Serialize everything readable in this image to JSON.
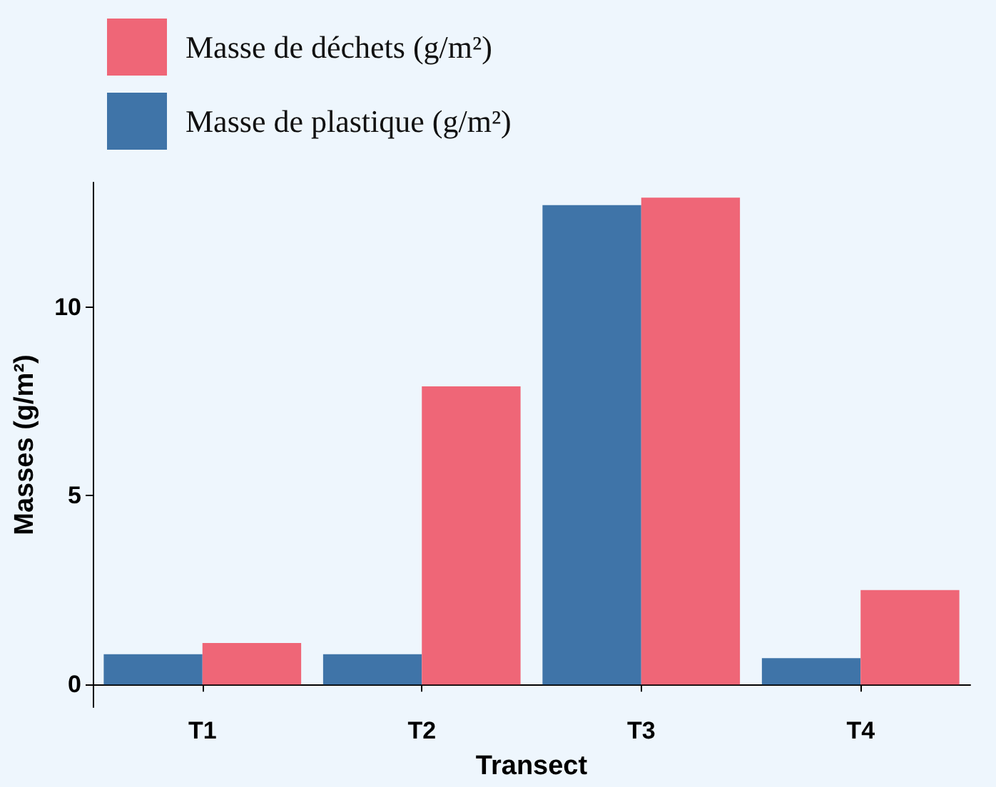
{
  "chart_data": {
    "type": "bar",
    "xlabel": "Transect",
    "ylabel": "Masses (g/m²)",
    "categories": [
      "T1",
      "T2",
      "T3",
      "T4"
    ],
    "series": [
      {
        "name": "Masse de plastique (g/m²)",
        "color": "#3f74a8",
        "values": [
          0.8,
          0.8,
          12.7,
          0.7
        ]
      },
      {
        "name": "Masse de déchets (g/m²)",
        "color": "#ef6677",
        "values": [
          1.1,
          7.9,
          12.9,
          2.5
        ]
      }
    ],
    "ylim": [
      -0.6,
      13.3
    ],
    "yticks": [
      0,
      5,
      10
    ],
    "grid": false,
    "legend": "top left"
  }
}
